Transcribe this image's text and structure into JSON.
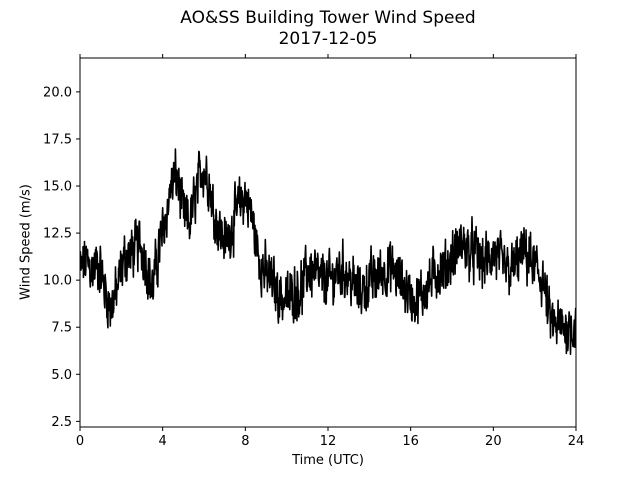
{
  "chart_data": {
    "type": "line",
    "title": "AO&SS Building Tower Wind Speed",
    "subtitle": "2017-12-05",
    "xlabel": "Time (UTC)",
    "ylabel": "Wind Speed (m/s)",
    "xlim": [
      0,
      24
    ],
    "ylim": [
      2.2,
      21.8
    ],
    "x_ticks": [
      0,
      4,
      8,
      12,
      16,
      20,
      24
    ],
    "x_tick_labels": [
      "0",
      "4",
      "8",
      "12",
      "16",
      "20",
      "24"
    ],
    "y_ticks": [
      2.5,
      5.0,
      7.5,
      10.0,
      12.5,
      15.0,
      17.5,
      20.0
    ],
    "y_tick_labels": [
      "2.5",
      "5.0",
      "7.5",
      "10.0",
      "12.5",
      "15.0",
      "17.5",
      "20.0"
    ],
    "grid": false,
    "line_color": "#000000",
    "anchor_points": [
      [
        0.0,
        10.5
      ],
      [
        0.3,
        11.0
      ],
      [
        0.6,
        10.5
      ],
      [
        0.9,
        11.0
      ],
      [
        1.2,
        9.5
      ],
      [
        1.5,
        8.5
      ],
      [
        1.8,
        9.5
      ],
      [
        2.1,
        11.0
      ],
      [
        2.5,
        11.5
      ],
      [
        2.9,
        12.0
      ],
      [
        3.2,
        11.0
      ],
      [
        3.5,
        9.5
      ],
      [
        3.8,
        11.5
      ],
      [
        4.1,
        13.0
      ],
      [
        4.4,
        15.0
      ],
      [
        4.7,
        15.5
      ],
      [
        5.0,
        13.5
      ],
      [
        5.3,
        13.0
      ],
      [
        5.6,
        14.5
      ],
      [
        5.9,
        16.0
      ],
      [
        6.2,
        15.5
      ],
      [
        6.5,
        13.5
      ],
      [
        6.8,
        12.5
      ],
      [
        7.1,
        12.0
      ],
      [
        7.4,
        13.0
      ],
      [
        7.7,
        14.0
      ],
      [
        8.0,
        14.5
      ],
      [
        8.3,
        13.5
      ],
      [
        8.6,
        11.5
      ],
      [
        8.9,
        10.5
      ],
      [
        9.2,
        10.0
      ],
      [
        9.5,
        9.5
      ],
      [
        9.8,
        9.0
      ],
      [
        10.1,
        9.0
      ],
      [
        10.4,
        9.5
      ],
      [
        10.7,
        9.5
      ],
      [
        11.0,
        10.5
      ],
      [
        11.3,
        10.5
      ],
      [
        11.6,
        10.0
      ],
      [
        11.9,
        10.0
      ],
      [
        12.2,
        10.0
      ],
      [
        12.5,
        10.5
      ],
      [
        12.8,
        10.5
      ],
      [
        13.1,
        10.0
      ],
      [
        13.4,
        9.5
      ],
      [
        13.7,
        9.5
      ],
      [
        14.0,
        10.0
      ],
      [
        14.3,
        10.0
      ],
      [
        14.6,
        10.5
      ],
      [
        14.9,
        10.5
      ],
      [
        15.2,
        10.5
      ],
      [
        15.5,
        10.0
      ],
      [
        15.8,
        9.5
      ],
      [
        16.1,
        9.0
      ],
      [
        16.4,
        9.0
      ],
      [
        16.7,
        9.5
      ],
      [
        17.0,
        10.0
      ],
      [
        17.3,
        10.5
      ],
      [
        17.6,
        10.5
      ],
      [
        17.9,
        11.0
      ],
      [
        18.2,
        11.5
      ],
      [
        18.5,
        12.0
      ],
      [
        18.8,
        11.5
      ],
      [
        19.1,
        11.5
      ],
      [
        19.4,
        11.0
      ],
      [
        19.7,
        11.0
      ],
      [
        20.0,
        11.5
      ],
      [
        20.3,
        11.0
      ],
      [
        20.6,
        10.5
      ],
      [
        20.9,
        10.5
      ],
      [
        21.2,
        11.0
      ],
      [
        21.5,
        11.5
      ],
      [
        21.8,
        11.0
      ],
      [
        22.1,
        10.5
      ],
      [
        22.4,
        10.0
      ],
      [
        22.7,
        8.0
      ],
      [
        23.0,
        7.5
      ],
      [
        23.3,
        7.5
      ],
      [
        23.6,
        7.5
      ],
      [
        24.0,
        7.5
      ]
    ],
    "noise_amplitude": 1.6
  }
}
